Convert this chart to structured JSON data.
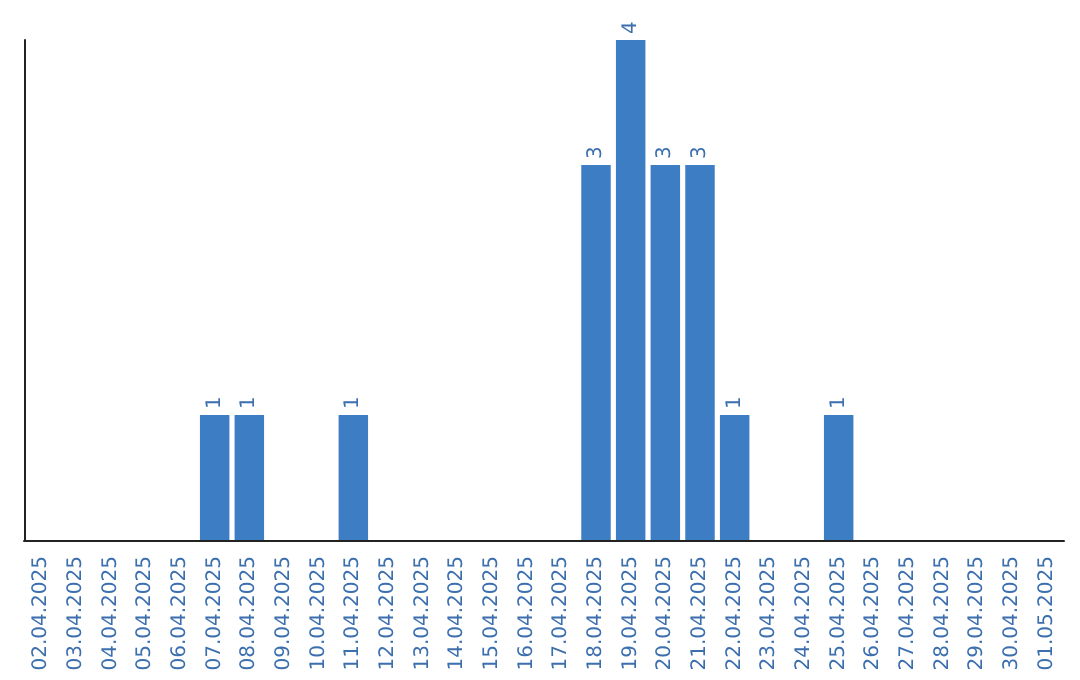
{
  "chart_data": {
    "type": "bar",
    "categories": [
      "02.04.2025",
      "03.04.2025",
      "04.04.2025",
      "05.04.2025",
      "06.04.2025",
      "07.04.2025",
      "08.04.2025",
      "09.04.2025",
      "10.04.2025",
      "11.04.2025",
      "12.04.2025",
      "13.04.2025",
      "14.04.2025",
      "15.04.2025",
      "16.04.2025",
      "17.04.2025",
      "18.04.2025",
      "19.04.2025",
      "20.04.2025",
      "21.04.2025",
      "22.04.2025",
      "23.04.2025",
      "24.04.2025",
      "25.04.2025",
      "26.04.2025",
      "27.04.2025",
      "28.04.2025",
      "29.04.2025",
      "30.04.2025",
      "01.05.2025"
    ],
    "values": [
      0,
      0,
      0,
      0,
      0,
      1,
      1,
      0,
      0,
      1,
      0,
      0,
      0,
      0,
      0,
      0,
      3,
      4,
      3,
      3,
      1,
      0,
      0,
      1,
      0,
      0,
      0,
      0,
      0,
      0
    ],
    "value_labels": [
      null,
      null,
      null,
      null,
      null,
      "1",
      "1",
      null,
      null,
      "1",
      null,
      null,
      null,
      null,
      null,
      null,
      "3",
      "4",
      "3",
      "3",
      "1",
      null,
      null,
      "1",
      null,
      null,
      null,
      null,
      null,
      null
    ],
    "color": "#3c7dc4",
    "grid": false,
    "tick_labels": "x"
  }
}
